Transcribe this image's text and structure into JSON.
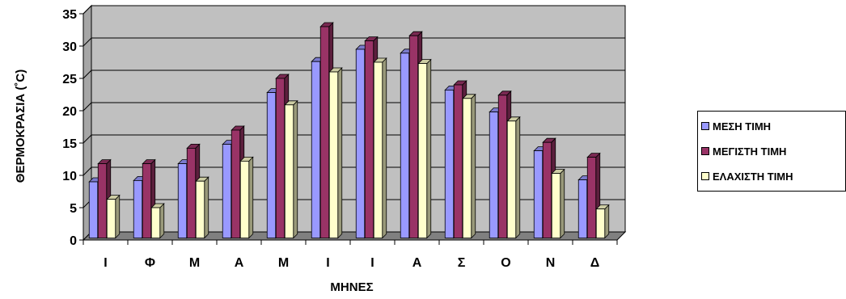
{
  "chart_data": {
    "type": "bar",
    "variant": "3d-clustered",
    "categories": [
      "Ι",
      "Φ",
      "Μ",
      "Α",
      "Μ",
      "Ι",
      "Ι",
      "Α",
      "Σ",
      "Ο",
      "Ν",
      "Δ"
    ],
    "series": [
      {
        "name": "ΜΕΣΗ ΤΙΜΗ",
        "color": "#9999ff",
        "values": [
          9.0,
          9.2,
          11.8,
          14.8,
          22.8,
          27.6,
          29.5,
          28.9,
          23.2,
          19.8,
          13.8,
          9.3
        ]
      },
      {
        "name": "ΜΕΓΙΣΤΗ ΤΙΜΗ",
        "color": "#993366",
        "values": [
          11.8,
          11.8,
          14.2,
          17.0,
          25.0,
          33.0,
          30.8,
          31.6,
          24.0,
          22.4,
          15.1,
          12.8
        ]
      },
      {
        "name": "ΕΛΑΧΙΣΤΗ ΤΙΜΗ",
        "color": "#ffffcc",
        "values": [
          6.3,
          5.0,
          9.1,
          12.2,
          20.9,
          26.0,
          27.5,
          27.3,
          21.9,
          18.4,
          10.3,
          4.8
        ]
      }
    ],
    "xlabel": "ΜΗΝΕΣ",
    "ylabel": "ΘΕΡΜΟΚΡΑΣΙΑ (˚C)",
    "ylim": [
      0,
      35
    ],
    "yticks": [
      0,
      5,
      10,
      15,
      20,
      25,
      30,
      35
    ],
    "grid": true,
    "plot_background": "#c0c0c0",
    "legend_position": "right"
  }
}
